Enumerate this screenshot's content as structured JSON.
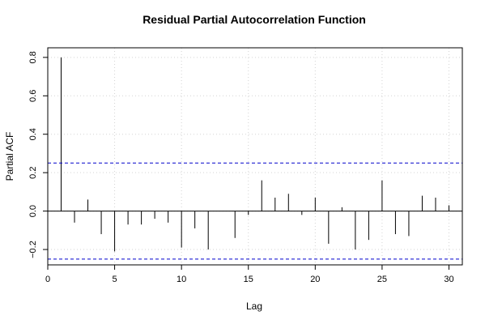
{
  "chart_data": {
    "type": "bar",
    "title": "Residual Partial Autocorrelation Function",
    "xlabel": "Lag",
    "ylabel": "Partial ACF",
    "xlim": [
      0,
      31
    ],
    "ylim": [
      -0.28,
      0.85
    ],
    "x_ticks": [
      {
        "value": 0,
        "label": "0"
      },
      {
        "value": 5,
        "label": "5"
      },
      {
        "value": 10,
        "label": "10"
      },
      {
        "value": 15,
        "label": "15"
      },
      {
        "value": 20,
        "label": "20"
      },
      {
        "value": 25,
        "label": "25"
      },
      {
        "value": 30,
        "label": "30"
      }
    ],
    "y_ticks": [
      {
        "value": -0.2,
        "label": "−0.2"
      },
      {
        "value": 0.0,
        "label": "0.0"
      },
      {
        "value": 0.2,
        "label": "0.2"
      },
      {
        "value": 0.4,
        "label": "0.4"
      },
      {
        "value": 0.6,
        "label": "0.6"
      },
      {
        "value": 0.8,
        "label": "0.8"
      }
    ],
    "grid": true,
    "lags": [
      1,
      2,
      3,
      4,
      5,
      6,
      7,
      8,
      9,
      10,
      11,
      12,
      13,
      14,
      15,
      16,
      17,
      18,
      19,
      20,
      21,
      22,
      23,
      24,
      25,
      26,
      27,
      28,
      29,
      30
    ],
    "values": [
      0.8,
      -0.06,
      0.06,
      -0.12,
      -0.21,
      -0.07,
      -0.07,
      -0.04,
      -0.06,
      -0.19,
      -0.09,
      -0.2,
      0.0,
      -0.14,
      -0.02,
      0.16,
      0.07,
      0.09,
      -0.02,
      0.07,
      -0.17,
      0.02,
      -0.2,
      -0.15,
      0.16,
      -0.12,
      -0.13,
      0.08,
      0.07,
      0.03
    ],
    "confidence_bound": 0.25,
    "colors": {
      "bar": "#000000",
      "confidence": "#0000cc",
      "grid": "#d3d3d3",
      "frame": "#000000"
    }
  }
}
